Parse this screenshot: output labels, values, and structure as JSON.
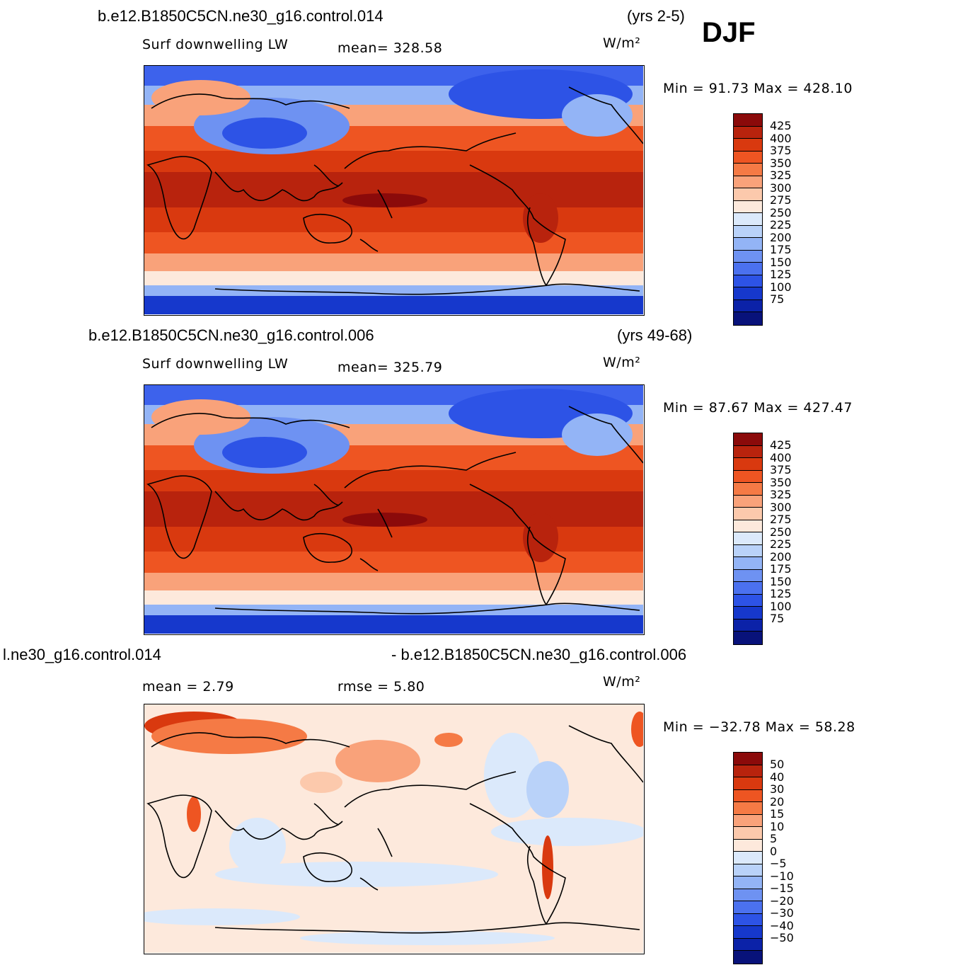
{
  "season": "DJF",
  "units": "W/m²",
  "palettes": {
    "abs": [
      "#8b0a0a",
      "#b8230d",
      "#d9390f",
      "#ee5522",
      "#f57a45",
      "#f9a27a",
      "#fcc9ac",
      "#fde9dc",
      "#dbe9fb",
      "#b9d2f9",
      "#93b4f6",
      "#6e92f2",
      "#4b71ef",
      "#2d53e6",
      "#1638cc",
      "#0b22a8",
      "#08127a"
    ],
    "diff": [
      "#8b0a0a",
      "#b8230d",
      "#d9390f",
      "#ee5522",
      "#f57a45",
      "#f9a27a",
      "#fcc9ac",
      "#fde9dc",
      "#dbe9fb",
      "#b9d2f9",
      "#93b4f6",
      "#6e92f2",
      "#4b71ef",
      "#2d53e6",
      "#1638cc",
      "#0b22a8",
      "#08127a"
    ]
  },
  "panels": [
    {
      "case_title": "b.e12.B1850C5CN.ne30_g16.control.014",
      "years": "(yrs 2-5)",
      "variable": "Surf downwelling LW",
      "stat_text": "mean= 328.58",
      "minmax_text": "Min =  91.73 Max = 428.10",
      "colorbar_labels": [
        "425",
        "400",
        "375",
        "350",
        "325",
        "300",
        "275",
        "250",
        "225",
        "200",
        "175",
        "150",
        "125",
        "100",
        "75"
      ]
    },
    {
      "case_title": "b.e12.B1850C5CN.ne30_g16.control.006",
      "years": "(yrs 49-68)",
      "variable": "Surf downwelling LW",
      "stat_text": "mean= 325.79",
      "minmax_text": "Min =  87.67 Max = 427.47",
      "colorbar_labels": [
        "425",
        "400",
        "375",
        "350",
        "325",
        "300",
        "275",
        "250",
        "225",
        "200",
        "175",
        "150",
        "125",
        "100",
        "75"
      ]
    },
    {
      "case_title": "l.ne30_g16.control.014",
      "case_title_right": "- b.e12.B1850C5CN.ne30_g16.control.006",
      "mean_text": "mean =    2.79",
      "rmse_text": "rmse =    5.80",
      "minmax_text": "Min = −32.78 Max =   58.28",
      "colorbar_labels": [
        "50",
        "40",
        "30",
        "20",
        "15",
        "10",
        "5",
        "0",
        "−5",
        "−10",
        "−15",
        "−20",
        "−30",
        "−40",
        "−50"
      ]
    }
  ]
}
